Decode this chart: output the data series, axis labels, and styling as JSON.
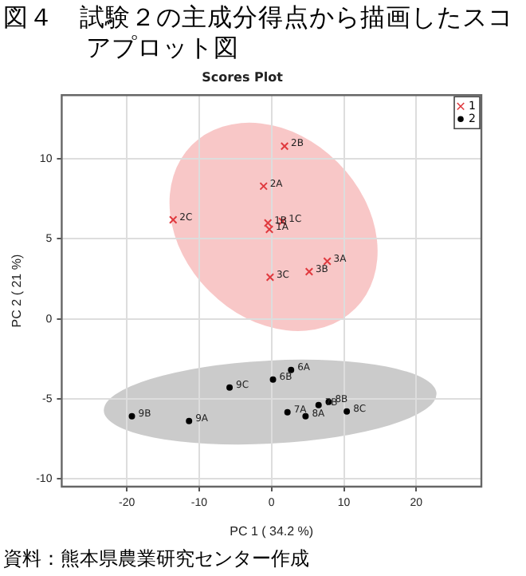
{
  "chart_data": {
    "type": "scatter",
    "title": "図４　試験２の主成分得点から描画したスコアプロット図",
    "subtitle": "Scores Plot",
    "xlabel": "PC 1 ( 34.2 %)",
    "ylabel": "PC 2 ( 21 %)",
    "series": [
      {
        "name": "1",
        "color": "#e0393e",
        "marker": "cross",
        "x": [
          1.8,
          -1.1,
          -13.6,
          -0.5,
          1.5,
          -0.3,
          7.7,
          5.2,
          -0.2
        ],
        "values": [
          10.8,
          8.3,
          6.2,
          6.0,
          6.1,
          5.6,
          3.6,
          2.95,
          2.6
        ]
      },
      {
        "name": "2",
        "color": "#000000",
        "marker": "circle",
        "x": [
          2.7,
          0.2,
          -5.8,
          -19.3,
          -11.4,
          2.2,
          4.7,
          6.5,
          7.9,
          10.4
        ],
        "values": [
          -3.2,
          -3.8,
          -4.3,
          -6.1,
          -6.4,
          -5.85,
          -6.1,
          -5.4,
          -5.2,
          -5.8
        ]
      }
    ],
    "xlim": [
      -29,
      29
    ],
    "ylim": [
      -10.5,
      14
    ],
    "xticks": [
      -20,
      -10,
      0,
      10,
      20
    ],
    "yticks": [
      -10,
      -5,
      0,
      5,
      10
    ],
    "grid": true,
    "legend": "top right",
    "annotations": [
      {
        "text": "2B",
        "x": 1.8,
        "y": 10.8
      },
      {
        "text": "2A",
        "x": -1.1,
        "y": 8.3
      },
      {
        "text": "2C",
        "x": -13.6,
        "y": 6.2
      },
      {
        "text": "1B",
        "x": -0.5,
        "y": 6.0
      },
      {
        "text": "1C",
        "x": 1.5,
        "y": 6.1
      },
      {
        "text": "1A",
        "x": -0.3,
        "y": 5.6
      },
      {
        "text": "3A",
        "x": 7.7,
        "y": 3.6
      },
      {
        "text": "3B",
        "x": 5.2,
        "y": 2.95
      },
      {
        "text": "3C",
        "x": -0.2,
        "y": 2.6
      },
      {
        "text": "6A",
        "x": 2.7,
        "y": -3.2
      },
      {
        "text": "6B",
        "x": 0.2,
        "y": -3.8
      },
      {
        "text": "9C",
        "x": -5.8,
        "y": -4.3
      },
      {
        "text": "9B",
        "x": -19.3,
        "y": -6.1
      },
      {
        "text": "9A",
        "x": -11.4,
        "y": -6.4
      },
      {
        "text": "7A",
        "x": 2.2,
        "y": -5.85
      },
      {
        "text": "8A",
        "x": 4.7,
        "y": -6.1
      },
      {
        "text": "7B",
        "x": 6.5,
        "y": -5.4
      },
      {
        "text": "8B",
        "x": 7.9,
        "y": -5.2
      },
      {
        "text": "8C",
        "x": 10.4,
        "y": -5.8
      },
      "資料：熊本県農業研究センター作成"
    ]
  }
}
